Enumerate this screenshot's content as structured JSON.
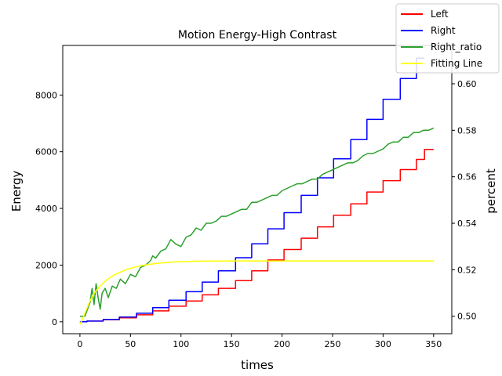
{
  "chart_data": {
    "type": "line",
    "title": "Motion Energy-High Contrast",
    "xlabel": "times",
    "ylabel": "Energy",
    "y2label": "percent",
    "xlim": [
      -17,
      368
    ],
    "ylim": [
      -420,
      9750
    ],
    "y2lim": [
      0.4925,
      0.6165
    ],
    "x_ticks": [
      0,
      50,
      100,
      150,
      200,
      250,
      300,
      350
    ],
    "y_ticks": [
      0,
      2000,
      4000,
      6000,
      8000
    ],
    "y2_ticks": [
      0.5,
      0.52,
      0.54,
      0.56,
      0.58,
      0.6
    ],
    "y2_tick_labels": [
      "0.50",
      "0.52",
      "0.54",
      "0.56",
      "0.58",
      "0.60"
    ],
    "grid": false,
    "legend_position": "top-right",
    "series": [
      {
        "name": "Left",
        "axis": "left",
        "color": "#ff0000",
        "steps": {
          "x": [
            0,
            7,
            23,
            39,
            56,
            72,
            88,
            105,
            121,
            137,
            154,
            170,
            186,
            202,
            219,
            235,
            251,
            268,
            284,
            300,
            317,
            333,
            341,
            350
          ],
          "y": [
            0,
            25,
            75,
            140,
            245,
            385,
            550,
            735,
            950,
            1180,
            1450,
            1800,
            2180,
            2550,
            2950,
            3350,
            3760,
            4160,
            4580,
            4980,
            5370,
            5730,
            6080,
            6080
          ]
        }
      },
      {
        "name": "Right",
        "axis": "left",
        "color": "#0000ff",
        "steps": {
          "x": [
            0,
            7,
            23,
            39,
            56,
            72,
            88,
            105,
            121,
            137,
            154,
            170,
            186,
            202,
            219,
            235,
            251,
            268,
            284,
            300,
            317,
            333,
            341
          ],
          "y": [
            0,
            25,
            85,
            165,
            300,
            500,
            760,
            1060,
            1400,
            1800,
            2260,
            2750,
            3280,
            3850,
            4460,
            5080,
            5750,
            6430,
            7140,
            7850,
            8580,
            9300,
            9300
          ]
        }
      },
      {
        "name": "Right_ratio",
        "axis": "right",
        "color": "#2ca02c",
        "x": [
          0,
          5,
          10,
          12,
          14,
          16,
          18,
          20,
          22,
          25,
          28,
          32,
          36,
          40,
          45,
          50,
          55,
          60,
          65,
          70,
          72,
          75,
          80,
          85,
          90,
          95,
          100,
          105,
          110,
          115,
          120,
          125,
          130,
          135,
          140,
          145,
          150,
          155,
          160,
          165,
          170,
          175,
          180,
          185,
          190,
          195,
          200,
          205,
          210,
          215,
          220,
          225,
          230,
          235,
          240,
          245,
          250,
          255,
          260,
          265,
          270,
          275,
          280,
          285,
          290,
          295,
          300,
          305,
          310,
          315,
          320,
          325,
          330,
          335,
          340,
          345,
          350
        ],
        "y": [
          0.5,
          0.5,
          0.506,
          0.512,
          0.505,
          0.514,
          0.508,
          0.503,
          0.51,
          0.512,
          0.508,
          0.513,
          0.512,
          0.516,
          0.514,
          0.518,
          0.517,
          0.521,
          0.522,
          0.524,
          0.526,
          0.525,
          0.528,
          0.529,
          0.533,
          0.531,
          0.53,
          0.534,
          0.535,
          0.538,
          0.537,
          0.54,
          0.54,
          0.541,
          0.543,
          0.543,
          0.544,
          0.545,
          0.546,
          0.546,
          0.549,
          0.549,
          0.55,
          0.551,
          0.552,
          0.552,
          0.554,
          0.555,
          0.556,
          0.557,
          0.557,
          0.558,
          0.559,
          0.559,
          0.561,
          0.562,
          0.563,
          0.564,
          0.565,
          0.566,
          0.566,
          0.567,
          0.569,
          0.57,
          0.57,
          0.571,
          0.572,
          0.574,
          0.575,
          0.575,
          0.577,
          0.577,
          0.579,
          0.579,
          0.58,
          0.58,
          0.581
        ]
      },
      {
        "name": "Fitting Line",
        "axis": "right",
        "color": "#ffff00",
        "x": [
          0,
          5,
          10,
          15,
          20,
          25,
          30,
          35,
          40,
          45,
          50,
          55,
          60,
          65,
          70,
          80,
          90,
          100,
          120,
          150,
          200,
          250,
          300,
          350
        ],
        "y": [
          0.4965,
          0.5013,
          0.5067,
          0.5105,
          0.513,
          0.5151,
          0.5167,
          0.518,
          0.519,
          0.5199,
          0.5206,
          0.5212,
          0.5217,
          0.5221,
          0.5224,
          0.5229,
          0.5233,
          0.5235,
          0.5237,
          0.5238,
          0.5238,
          0.5238,
          0.5238,
          0.5238
        ]
      }
    ]
  }
}
